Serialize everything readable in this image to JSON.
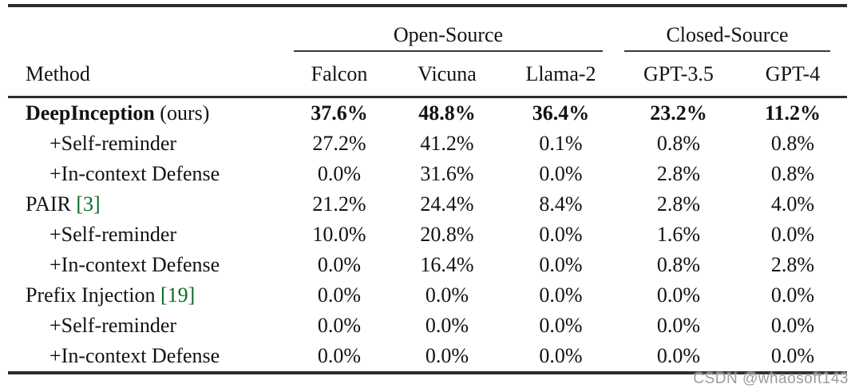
{
  "table": {
    "method_header": "Method",
    "col_groups": [
      {
        "label": "Open-Source",
        "span": 3
      },
      {
        "label": "Closed-Source",
        "span": 2
      }
    ],
    "columns": [
      "Falcon",
      "Vicuna",
      "Llama-2",
      "GPT-3.5",
      "GPT-4"
    ],
    "rows": [
      {
        "method": "DeepInception",
        "suffix": " (ours)",
        "citation": "",
        "indent": false,
        "bold": true,
        "values": [
          "37.6%",
          "48.8%",
          "36.4%",
          "23.2%",
          "11.2%"
        ]
      },
      {
        "method": "+Self-reminder",
        "suffix": "",
        "citation": "",
        "indent": true,
        "bold": false,
        "values": [
          "27.2%",
          "41.2%",
          "0.1%",
          "0.8%",
          "0.8%"
        ]
      },
      {
        "method": "+In-context Defense",
        "suffix": "",
        "citation": "",
        "indent": true,
        "bold": false,
        "values": [
          "0.0%",
          "31.6%",
          "0.0%",
          "2.8%",
          "0.8%"
        ]
      },
      {
        "method": "PAIR",
        "suffix": "",
        "citation": "[3]",
        "indent": false,
        "bold": false,
        "values": [
          "21.2%",
          "24.4%",
          "8.4%",
          "2.8%",
          "4.0%"
        ]
      },
      {
        "method": "+Self-reminder",
        "suffix": "",
        "citation": "",
        "indent": true,
        "bold": false,
        "values": [
          "10.0%",
          "20.8%",
          "0.0%",
          "1.6%",
          "0.0%"
        ]
      },
      {
        "method": "+In-context Defense",
        "suffix": "",
        "citation": "",
        "indent": true,
        "bold": false,
        "values": [
          "0.0%",
          "16.4%",
          "0.0%",
          "0.8%",
          "2.8%"
        ]
      },
      {
        "method": "Prefix Injection",
        "suffix": "",
        "citation": "[19]",
        "indent": false,
        "bold": false,
        "values": [
          "0.0%",
          "0.0%",
          "0.0%",
          "0.0%",
          "0.0%"
        ]
      },
      {
        "method": "+Self-reminder",
        "suffix": "",
        "citation": "",
        "indent": true,
        "bold": false,
        "values": [
          "0.0%",
          "0.0%",
          "0.0%",
          "0.0%",
          "0.0%"
        ]
      },
      {
        "method": "+In-context Defense",
        "suffix": "",
        "citation": "",
        "indent": true,
        "bold": false,
        "values": [
          "0.0%",
          "0.0%",
          "0.0%",
          "0.0%",
          "0.0%"
        ]
      }
    ]
  },
  "watermark": "CSDN @whaosoft143",
  "colors": {
    "text": "#121212",
    "rule": "#2d2d2d",
    "citation": "#0b6b23",
    "watermark": "#9c9c9c"
  }
}
